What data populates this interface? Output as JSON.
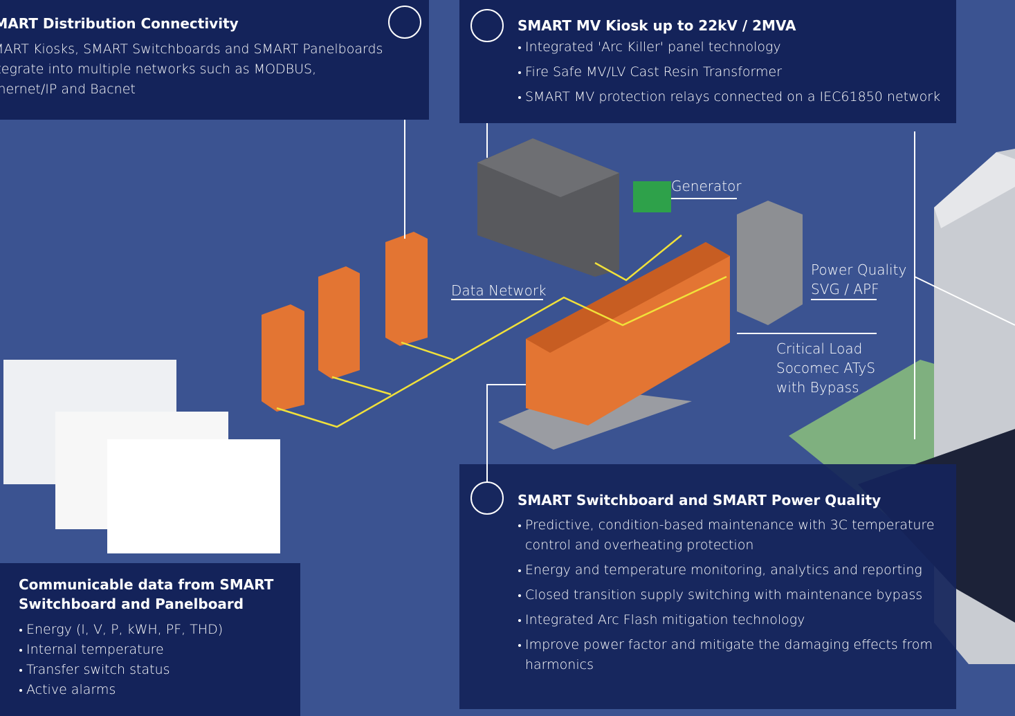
{
  "panels": {
    "connectivity": {
      "title": "SMART Distribution Connectivity",
      "body": "SMART Kiosks, SMART Switchboards and SMART Panelboards integrate into multiple networks such as MODBUS, Ethernet/IP and Bacnet"
    },
    "kiosk": {
      "title": "SMART MV Kiosk up to 22kV / 2MVA",
      "bullets": [
        "Integrated 'Arc Killer' panel technology",
        "Fire Safe MV/LV Cast Resin Transformer",
        "SMART MV protection relays connected on a IEC61850 network"
      ]
    },
    "switchboard": {
      "title": "SMART Switchboard and SMART Power Quality",
      "bullets": [
        "Predictive, condition-based maintenance with 3C temperature control and overheating protection",
        "Energy and temperature monitoring, analytics and reporting",
        "Closed transition supply switching with maintenance bypass",
        "Integrated Arc Flash mitigation technology",
        "Improve power factor and mitigate the damaging effects from harmonics"
      ]
    },
    "data": {
      "title": "Communicable data from SMART Switchboard and Panelboard",
      "bullets": [
        "Energy (I, V, P, kWH, PF, THD)",
        "Internal temperature",
        "Transfer switch status",
        "Active alarms"
      ]
    }
  },
  "labels": {
    "generator": "Generator",
    "data_network": "Data Network",
    "power_quality": [
      "Power Quality",
      "SVG / APF"
    ],
    "critical_load": [
      "Critical Load",
      "Socomec ATyS",
      "with Bypass"
    ]
  }
}
